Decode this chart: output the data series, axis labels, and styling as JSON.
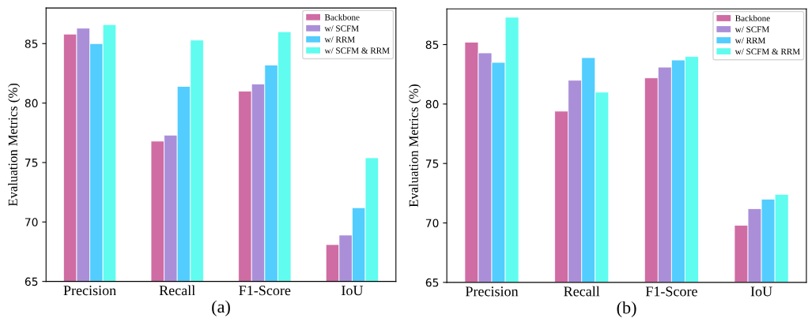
{
  "chart_data": [
    {
      "type": "bar",
      "xlabel": "(a)",
      "ylabel": "Evaluation Metrics (%)",
      "categories": [
        "Precision",
        "Recall",
        "F1-Score",
        "IoU"
      ],
      "series": [
        {
          "name": "Backbone",
          "color": "#cf6ca3",
          "values": [
            85.8,
            76.8,
            81.0,
            68.1
          ]
        },
        {
          "name": "w/ SCFM",
          "color": "#aa8fd8",
          "values": [
            86.3,
            77.3,
            81.6,
            68.9
          ]
        },
        {
          "name": "w/ RRM",
          "color": "#52cdfe",
          "values": [
            85.0,
            81.4,
            83.2,
            71.2
          ]
        },
        {
          "name": "w/ SCFM & RRM",
          "color": "#60fcef",
          "values": [
            86.6,
            85.3,
            86.0,
            75.4
          ]
        }
      ],
      "ylim": [
        65,
        88
      ],
      "yticks": [
        65,
        70,
        75,
        80,
        85
      ],
      "grid": false,
      "legend": "top right"
    },
    {
      "type": "bar",
      "xlabel": "(b)",
      "ylabel": "Evaluation Metrics (%)",
      "categories": [
        "Precision",
        "Recall",
        "F1-Score",
        "IoU"
      ],
      "series": [
        {
          "name": "Backbone",
          "color": "#cf6ca3",
          "values": [
            85.2,
            79.4,
            82.2,
            69.8
          ]
        },
        {
          "name": "w/ SCFM",
          "color": "#aa8fd8",
          "values": [
            84.3,
            82.0,
            83.1,
            71.2
          ]
        },
        {
          "name": "w/ RRM",
          "color": "#52cdfe",
          "values": [
            83.5,
            83.9,
            83.7,
            72.0
          ]
        },
        {
          "name": "w/ SCFM & RRM",
          "color": "#60fcef",
          "values": [
            87.3,
            81.0,
            84.0,
            72.4
          ]
        }
      ],
      "ylim": [
        65,
        88
      ],
      "yticks": [
        65,
        70,
        75,
        80,
        85
      ],
      "grid": false,
      "legend": "top right"
    }
  ]
}
